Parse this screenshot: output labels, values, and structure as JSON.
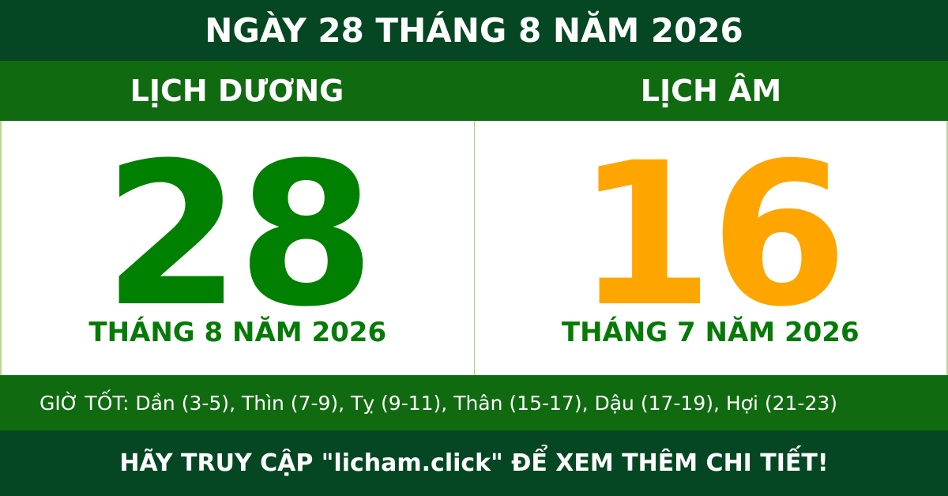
{
  "title": "NGÀY 28 THÁNG 8 NĂM 2026",
  "solar": {
    "heading": "LỊCH DƯƠNG",
    "day": "28",
    "month_year": "THÁNG 8 NĂM 2026"
  },
  "lunar": {
    "heading": "LỊCH ÂM",
    "day": "16",
    "month_year": "THÁNG 7 NĂM 2026"
  },
  "good_hours": "GIỜ TỐT: Dần (3-5), Thìn (7-9), Tỵ (9-11), Thân (15-17), Dậu (17-19), Hợi (21-23)",
  "footer": "HÃY TRUY CẬP \"licham.click\" ĐỂ XEM THÊM CHI TIẾT!",
  "colors": {
    "dark_green": "#044722",
    "green": "#106b10",
    "solar_day": "#008000",
    "lunar_day": "#ffa500"
  }
}
